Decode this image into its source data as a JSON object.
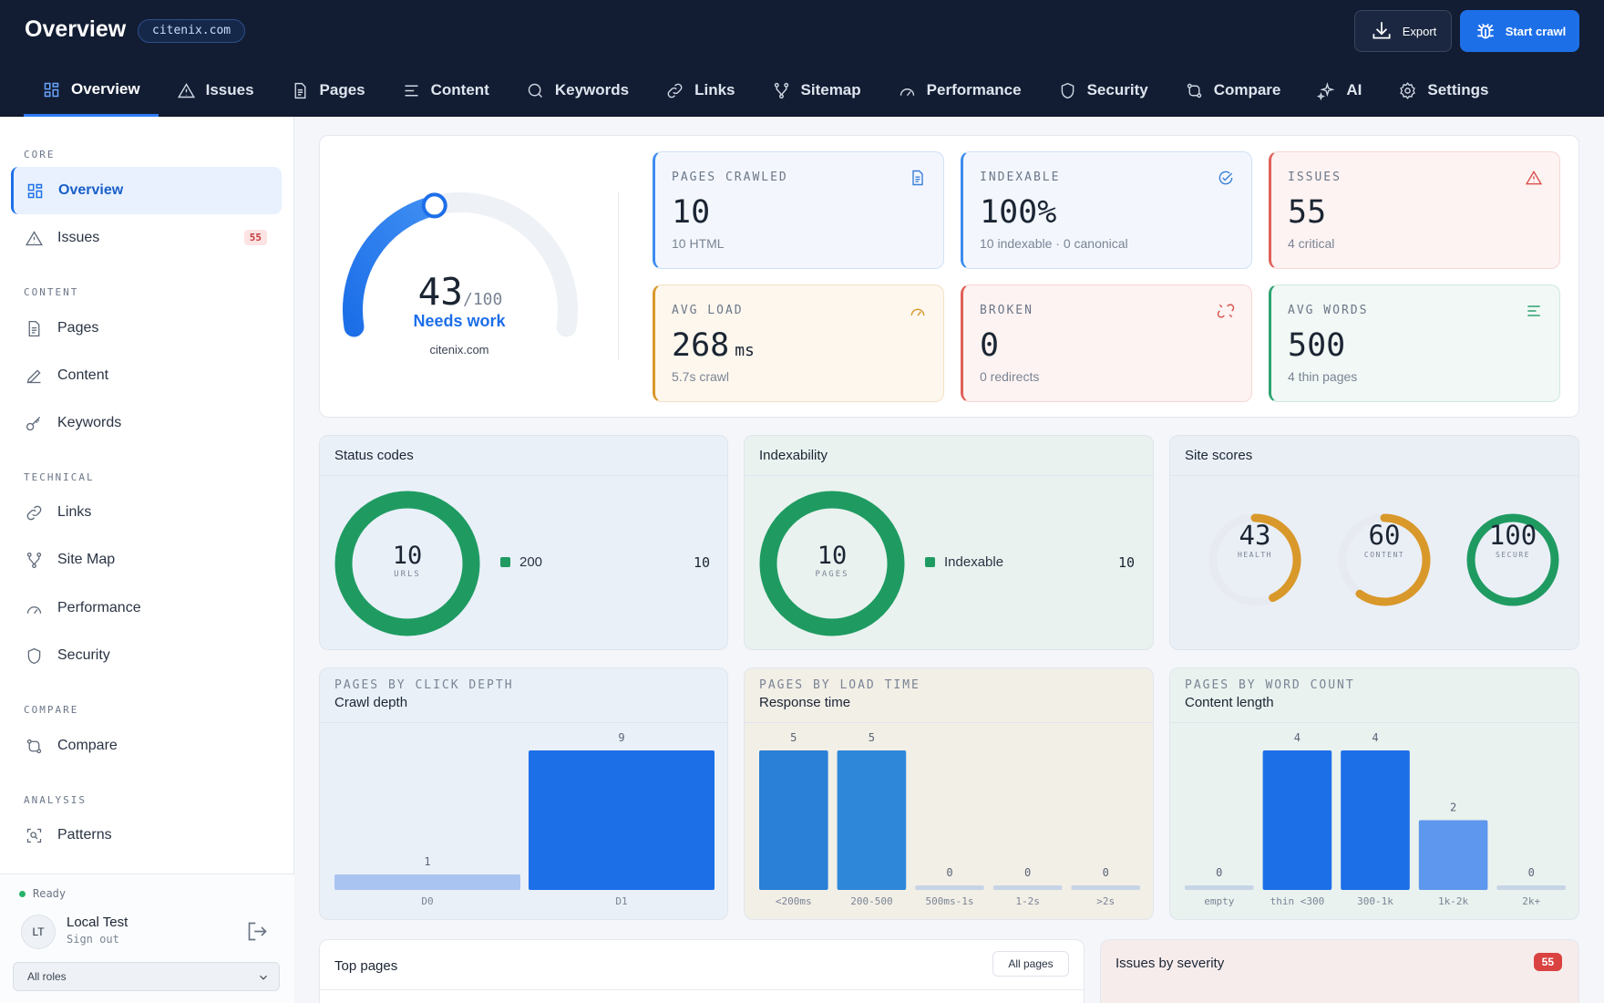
{
  "header": {
    "title": "Overview",
    "domain": "citenix.com",
    "export_label": "Export",
    "start_crawl_label": "Start crawl"
  },
  "nav": {
    "tabs": [
      {
        "label": "Overview",
        "icon": "grid-icon",
        "active": true
      },
      {
        "label": "Issues",
        "icon": "warning-icon"
      },
      {
        "label": "Pages",
        "icon": "file-icon"
      },
      {
        "label": "Content",
        "icon": "lines-icon"
      },
      {
        "label": "Keywords",
        "icon": "search-icon"
      },
      {
        "label": "Links",
        "icon": "link-icon"
      },
      {
        "label": "Sitemap",
        "icon": "sitemap-icon"
      },
      {
        "label": "Performance",
        "icon": "gauge-icon"
      },
      {
        "label": "Security",
        "icon": "shield-icon"
      },
      {
        "label": "Compare",
        "icon": "compare-icon"
      },
      {
        "label": "AI",
        "icon": "sparkle-icon"
      },
      {
        "label": "Settings",
        "icon": "gear-icon"
      }
    ]
  },
  "sidebar": {
    "sections": {
      "core": "CORE",
      "content": "CONTENT",
      "technical": "TECHNICAL",
      "compare": "COMPARE",
      "analysis": "ANALYSIS"
    },
    "items": {
      "overview": "Overview",
      "issues": "Issues",
      "issues_badge": "55",
      "pages": "Pages",
      "content": "Content",
      "keywords": "Keywords",
      "links": "Links",
      "sitemap": "Site Map",
      "performance": "Performance",
      "security": "Security",
      "compare": "Compare",
      "patterns": "Patterns"
    },
    "footer": {
      "status": "Ready",
      "avatar": "LT",
      "user": "Local Test",
      "signout": "Sign out",
      "role": "All roles"
    }
  },
  "score": {
    "value": "43",
    "max": "/100",
    "fraction": 0.43,
    "status": "Needs work",
    "domain": "citenix.com"
  },
  "stats": {
    "pages_crawled": {
      "label": "PAGES CRAWLED",
      "value": "10",
      "sub": "10 HTML"
    },
    "indexable": {
      "label": "INDEXABLE",
      "value": "100%",
      "sub": "10 indexable · 0 canonical"
    },
    "issues": {
      "label": "ISSUES",
      "value": "55",
      "sub": "4 critical"
    },
    "avg_load": {
      "label": "AVG LOAD",
      "value": "268",
      "unit": "ms",
      "sub": "5.7s crawl"
    },
    "broken": {
      "label": "BROKEN",
      "value": "0",
      "sub": "0 redirects"
    },
    "avg_words": {
      "label": "AVG WORDS",
      "value": "500",
      "sub": "4 thin pages"
    }
  },
  "status_codes": {
    "title": "Status codes",
    "total": "10",
    "unit": "URLS",
    "legend_label": "200",
    "legend_value": "10"
  },
  "indexability": {
    "title": "Indexability",
    "total": "10",
    "unit": "PAGES",
    "legend_label": "Indexable",
    "legend_value": "10"
  },
  "site_scores": {
    "title": "Site scores",
    "items": [
      {
        "value": "43",
        "label": "HEALTH",
        "fraction": 0.43
      },
      {
        "value": "60",
        "label": "CONTENT",
        "fraction": 0.6
      },
      {
        "value": "100",
        "label": "SECURE",
        "fraction": 1.0
      }
    ]
  },
  "chart_data": [
    {
      "type": "bar",
      "kicker": "PAGES BY CLICK DEPTH",
      "title": "Crawl depth",
      "categories": [
        "D0",
        "D1"
      ],
      "values": [
        1,
        9
      ]
    },
    {
      "type": "bar",
      "kicker": "PAGES BY LOAD TIME",
      "title": "Response time",
      "categories": [
        "<200ms",
        "200-500",
        "500ms-1s",
        "1-2s",
        ">2s"
      ],
      "values": [
        5,
        5,
        0,
        0,
        0
      ]
    },
    {
      "type": "bar",
      "kicker": "PAGES BY WORD COUNT",
      "title": "Content length",
      "categories": [
        "empty",
        "thin <300",
        "300-1k",
        "1k-2k",
        "2k+"
      ],
      "values": [
        0,
        4,
        4,
        2,
        0
      ]
    }
  ],
  "top_pages": {
    "title": "Top pages",
    "button": "All pages"
  },
  "issues_by_severity": {
    "title": "Issues by severity",
    "count": "55"
  },
  "colors": {
    "accent": "#1d6fe8",
    "header_bg": "#121d33",
    "success": "#1f9b62",
    "warning": "#d9982a",
    "danger": "#d94240"
  }
}
